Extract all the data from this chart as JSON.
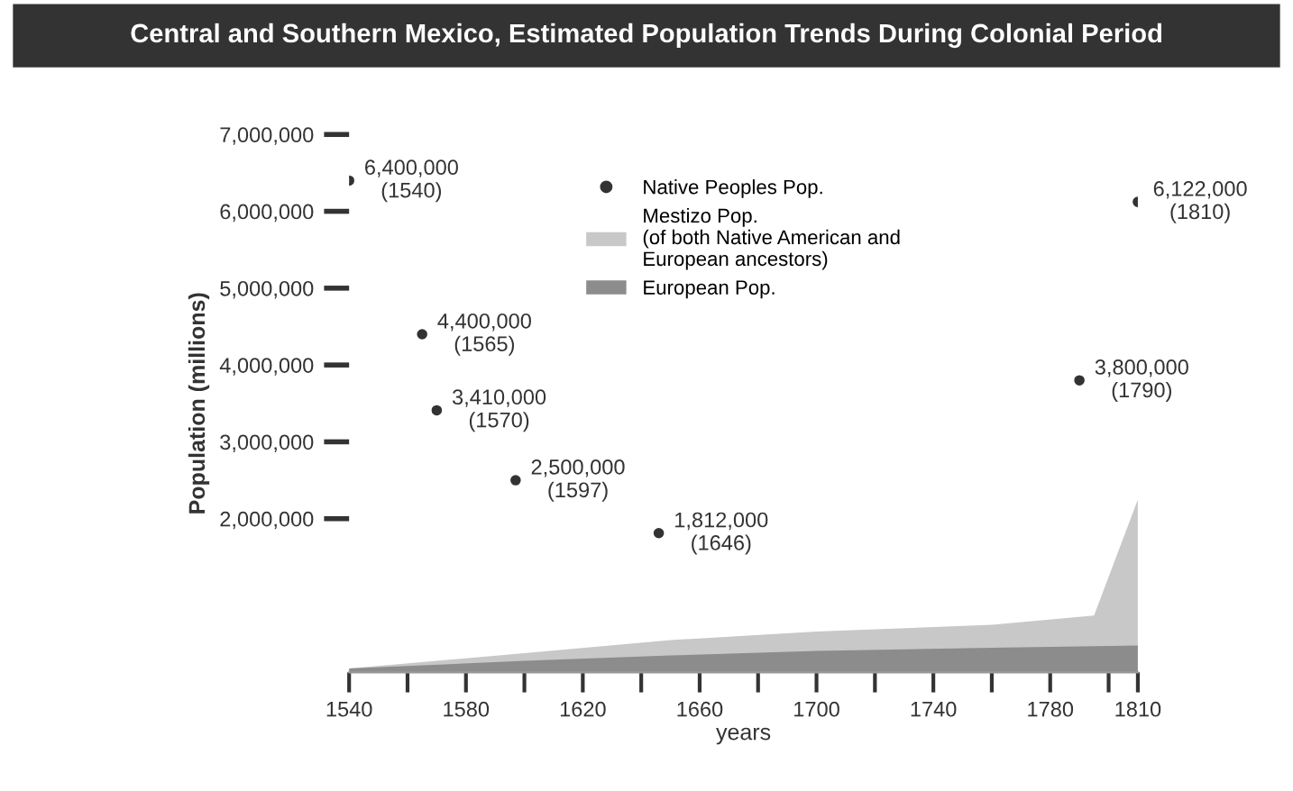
{
  "chart_data": {
    "type": "area",
    "title": "Central and Southern Mexico, Estimated Population Trends During Colonial Period",
    "xlabel": "years",
    "ylabel": "Population (millions)",
    "xlim": [
      1540,
      1810
    ],
    "xticks": [
      1540,
      {
        "value": 1560,
        "label": null
      },
      1580,
      {
        "value": 1600,
        "label": null
      },
      1620,
      {
        "value": 1640,
        "label": null
      },
      1660,
      {
        "value": 1680,
        "label": null
      },
      1700,
      {
        "value": 1720,
        "label": null
      },
      1740,
      {
        "value": 1760,
        "label": null
      },
      1780,
      {
        "value": 1800,
        "label": null
      },
      1810
    ],
    "ylim": [
      0,
      7000000
    ],
    "yticks": [
      {
        "value": 2000000,
        "label": "2,000,000"
      },
      {
        "value": 3000000,
        "label": "3,000,000"
      },
      {
        "value": 4000000,
        "label": "4,000,000"
      },
      {
        "value": 5000000,
        "label": "5,000,000"
      },
      {
        "value": 6000000,
        "label": "6,000,000"
      },
      {
        "value": 7000000,
        "label": "7,000,000"
      }
    ],
    "grid": false,
    "legend": "top",
    "series": [
      {
        "name": "Native Peoples Pop.",
        "type": "scatter",
        "marker": "circle",
        "color": "#333333",
        "x": [
          1540,
          1565,
          1570,
          1597,
          1646,
          1790,
          1810
        ],
        "values": [
          6400000,
          4400000,
          3410000,
          2500000,
          1812000,
          3800000,
          6122000
        ],
        "value_labels": [
          "6,400,000\n(1540)",
          "4,400,000\n(1565)",
          "3,410,000\n(1570)",
          "2,500,000\n(1597)",
          "1,812,000\n(1646)",
          "3,800,000\n(1790)",
          "6,122,000\n(1810)"
        ]
      },
      {
        "name": "Mestizo Pop.\n(of both Native American and\nEuropean ancestors)",
        "color": "#c8c8c8",
        "x": [
          1540,
          1600,
          1650,
          1700,
          1760,
          1795,
          1810
        ],
        "values": [
          50000,
          250000,
          420000,
          530000,
          620000,
          740000,
          2250000
        ]
      },
      {
        "name": "European Pop.",
        "color": "#8c8c8c",
        "x": [
          1540,
          1600,
          1650,
          1700,
          1760,
          1810
        ],
        "values": [
          50000,
          150000,
          220000,
          280000,
          320000,
          350000
        ]
      }
    ]
  }
}
